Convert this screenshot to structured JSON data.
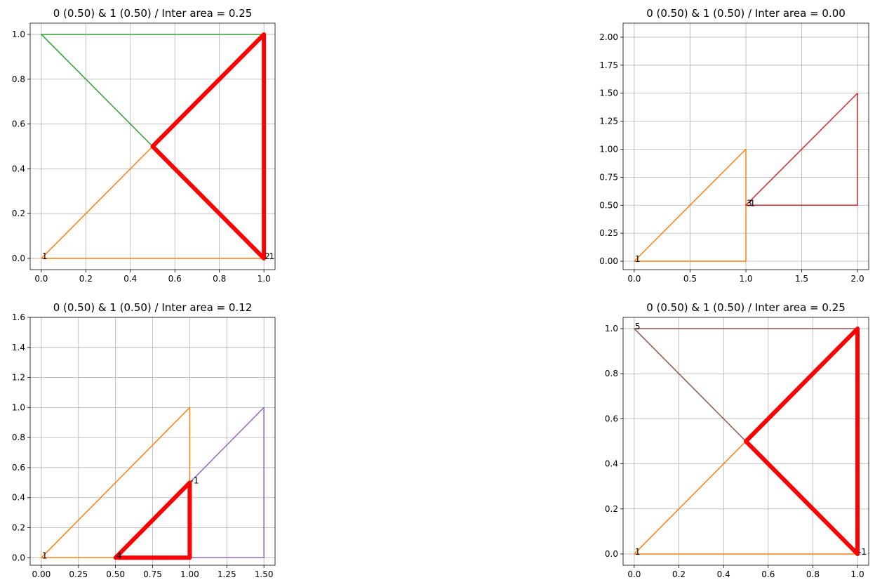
{
  "chart_data": [
    {
      "type": "line",
      "title": "0 (0.50) & 1 (0.50) / Inter area = 0.25",
      "xlim": [
        -0.05,
        1.05
      ],
      "ylim": [
        -0.05,
        1.05
      ],
      "xticks": [
        0,
        0.2,
        0.4,
        0.6,
        0.8,
        1.0
      ],
      "xtick_labels": [
        "0.0",
        "0.2",
        "0.4",
        "0.6",
        "0.8",
        "1.0"
      ],
      "yticks": [
        0,
        0.2,
        0.4,
        0.6,
        0.8,
        1.0
      ],
      "ytick_labels": [
        "0.0",
        "0.2",
        "0.4",
        "0.6",
        "0.8",
        "1.0"
      ],
      "grid": true,
      "series": [
        {
          "color": "#2ca02c",
          "width": 1.5,
          "x": [
            0,
            1,
            0.5,
            0
          ],
          "y": [
            1,
            1,
            0.5,
            1
          ]
        },
        {
          "color": "#ff7f0e",
          "width": 1.5,
          "x": [
            0,
            1,
            1,
            0.5,
            0
          ],
          "y": [
            0,
            0,
            0,
            0.5,
            0
          ]
        },
        {
          "color": "#ff0000",
          "width": 6,
          "x": [
            1,
            1,
            0.5,
            1
          ],
          "y": [
            0,
            1,
            0.5,
            0
          ]
        }
      ],
      "annotations": [
        {
          "text": "1",
          "x": 0,
          "y": 0
        },
        {
          "text": "2",
          "x": 1,
          "y": 0
        },
        {
          "text": "1",
          "x": 1.02,
          "y": 0
        }
      ]
    },
    {
      "type": "line",
      "title": "0 (0.50) & 1 (0.50) / Inter area = 0.00",
      "xlim": [
        -0.1,
        2.1
      ],
      "ylim": [
        -0.075,
        2.125
      ],
      "xticks": [
        0,
        0.5,
        1.0,
        1.5,
        2.0
      ],
      "xtick_labels": [
        "0.0",
        "0.5",
        "1.0",
        "1.5",
        "2.0"
      ],
      "yticks": [
        0,
        0.25,
        0.5,
        0.75,
        1.0,
        1.25,
        1.5,
        1.75,
        2.0
      ],
      "ytick_labels": [
        "0.00",
        "0.25",
        "0.50",
        "0.75",
        "1.00",
        "1.25",
        "1.50",
        "1.75",
        "2.00"
      ],
      "grid": true,
      "series": [
        {
          "color": "#ff7f0e",
          "width": 1.5,
          "x": [
            0,
            1,
            1,
            0
          ],
          "y": [
            0,
            0,
            1,
            0
          ]
        },
        {
          "color": "#d62728",
          "width": 1.5,
          "x": [
            1,
            2,
            2,
            1
          ],
          "y": [
            0.5,
            0.5,
            1.5,
            0.5
          ]
        }
      ],
      "annotations": [
        {
          "text": "1",
          "x": 0,
          "y": 0
        },
        {
          "text": "3",
          "x": 1,
          "y": 0.5
        },
        {
          "text": "1",
          "x": 1.03,
          "y": 0.5
        }
      ]
    },
    {
      "type": "line",
      "title": "0 (0.50) & 1 (0.50) / Inter area = 0.12",
      "xlim": [
        -0.075,
        1.575
      ],
      "ylim": [
        -0.05,
        1.6
      ],
      "xticks": [
        0,
        0.25,
        0.5,
        0.75,
        1.0,
        1.25,
        1.5
      ],
      "xtick_labels": [
        "0.00",
        "0.25",
        "0.50",
        "0.75",
        "1.00",
        "1.25",
        "1.50"
      ],
      "yticks": [
        0,
        0.2,
        0.4,
        0.6,
        0.8,
        1.0,
        1.2,
        1.4,
        1.6
      ],
      "ytick_labels": [
        "0.0",
        "0.2",
        "0.4",
        "0.6",
        "0.8",
        "1.0",
        "1.2",
        "1.4",
        "1.6"
      ],
      "grid": true,
      "series": [
        {
          "color": "#ff7f0e",
          "width": 1.5,
          "x": [
            0,
            1,
            1,
            0
          ],
          "y": [
            0,
            0,
            1,
            0
          ]
        },
        {
          "color": "#9467bd",
          "width": 1.5,
          "x": [
            0.5,
            1.5,
            1.5,
            0.5
          ],
          "y": [
            0,
            0,
            1,
            0
          ]
        },
        {
          "color": "#ff0000",
          "width": 6,
          "x": [
            0.5,
            1,
            1,
            0.5
          ],
          "y": [
            0,
            0,
            0.5,
            0
          ]
        }
      ],
      "annotations": [
        {
          "text": "1",
          "x": 0,
          "y": 0
        },
        {
          "text": "4",
          "x": 0.5,
          "y": 0
        },
        {
          "text": "-1",
          "x": 1.0,
          "y": 0.5
        }
      ]
    },
    {
      "type": "line",
      "title": "0 (0.50) & 1 (0.50) / Inter area = 0.25",
      "xlim": [
        -0.05,
        1.05
      ],
      "ylim": [
        -0.05,
        1.05
      ],
      "xticks": [
        0,
        0.2,
        0.4,
        0.6,
        0.8,
        1.0
      ],
      "xtick_labels": [
        "0.0",
        "0.2",
        "0.4",
        "0.6",
        "0.8",
        "1.0"
      ],
      "yticks": [
        0,
        0.2,
        0.4,
        0.6,
        0.8,
        1.0
      ],
      "ytick_labels": [
        "0.0",
        "0.2",
        "0.4",
        "0.6",
        "0.8",
        "1.0"
      ],
      "grid": true,
      "series": [
        {
          "color": "#8c564b",
          "width": 1.5,
          "x": [
            0,
            1,
            0.5,
            0
          ],
          "y": [
            1,
            1,
            0.5,
            1
          ]
        },
        {
          "color": "#ff7f0e",
          "width": 1.5,
          "x": [
            0,
            1,
            1,
            0.5,
            0
          ],
          "y": [
            0,
            0,
            0,
            0.5,
            0
          ]
        },
        {
          "color": "#ff0000",
          "width": 6,
          "x": [
            1,
            1,
            0.5,
            1
          ],
          "y": [
            0,
            1,
            0.5,
            0
          ]
        }
      ],
      "annotations": [
        {
          "text": "5",
          "x": 0,
          "y": 1
        },
        {
          "text": "1",
          "x": 0,
          "y": 0
        },
        {
          "text": "-1",
          "x": 1,
          "y": 0
        }
      ]
    }
  ]
}
